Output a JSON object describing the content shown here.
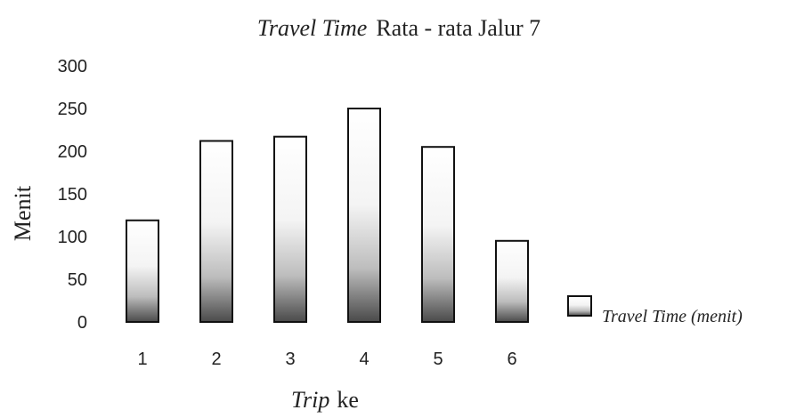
{
  "chart_data": {
    "type": "bar",
    "title_italic": "Travel Time",
    "title_rest": "Rata - rata Jalur 7",
    "xlabel_italic": "Trip",
    "xlabel_rest": "ke",
    "ylabel": "Menit",
    "categories": [
      "1",
      "2",
      "3",
      "4",
      "5",
      "6"
    ],
    "series": [
      {
        "name": "Travel Time (menit)",
        "values": [
          119,
          212,
          217,
          250,
          205,
          95
        ]
      }
    ],
    "ylim": [
      0,
      300
    ],
    "yticks": [
      0,
      50,
      100,
      150,
      200,
      250,
      300
    ],
    "grid": false,
    "legend_position": "right"
  }
}
